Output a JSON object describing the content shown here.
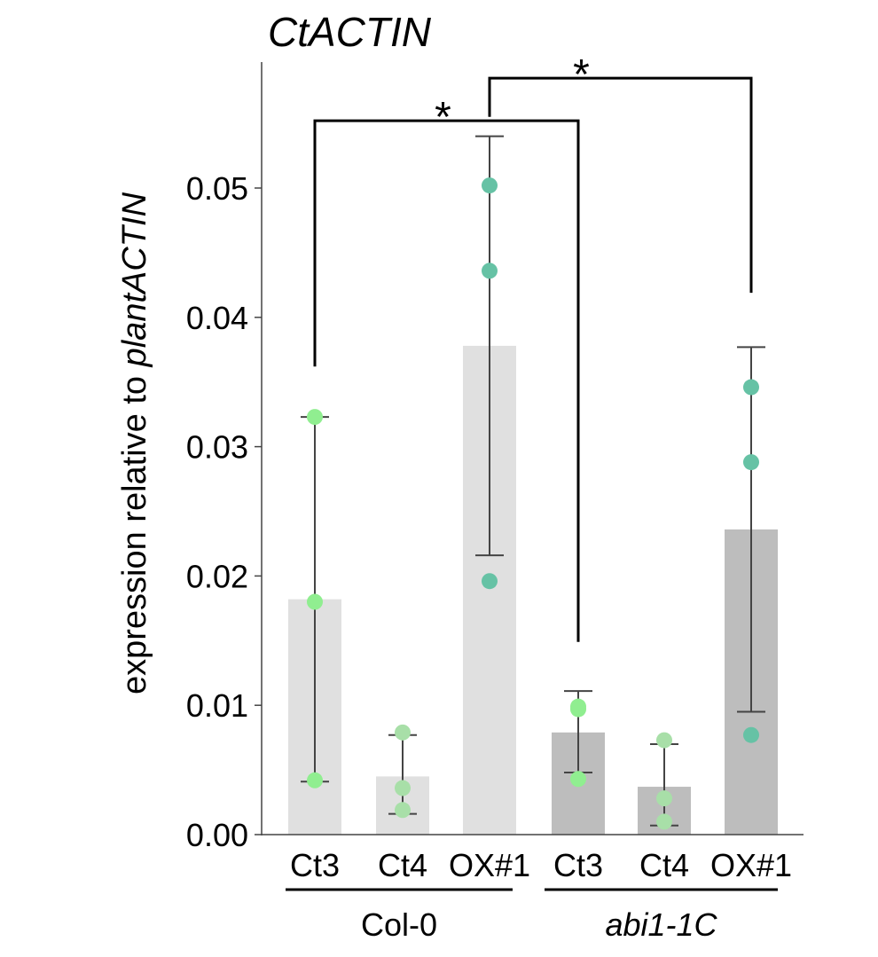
{
  "chart_data": {
    "type": "bar",
    "title": "CtACTIN",
    "ylabel_prefix": "expression relative to ",
    "ylabel_italic": "plantACTIN",
    "ylim": [
      0,
      0.059
    ],
    "yticks": [
      "0.00",
      "0.01",
      "0.02",
      "0.03",
      "0.04",
      "0.05"
    ],
    "ytick_values": [
      0,
      0.01,
      0.02,
      0.03,
      0.04,
      0.05
    ],
    "groups": [
      {
        "name": "Col-0",
        "italic": false,
        "bar_color": "#e0e0e0",
        "categories": [
          0,
          1,
          2
        ]
      },
      {
        "name": "abi1-1C",
        "italic": true,
        "bar_color": "#bdbdbd",
        "categories": [
          3,
          4,
          5
        ]
      }
    ],
    "categories": [
      "Ct3",
      "Ct4",
      "OX#1",
      "Ct3",
      "Ct4",
      "OX#1"
    ],
    "values": [
      0.0182,
      0.0045,
      0.0378,
      0.0079,
      0.0037,
      0.0236
    ],
    "error_low": [
      0.0041,
      0.0016,
      0.0216,
      0.0048,
      0.0007,
      0.0095
    ],
    "error_high": [
      0.0323,
      0.0077,
      0.054,
      0.0111,
      0.007,
      0.0377
    ],
    "points": [
      [
        0.0323,
        0.018,
        0.0042
      ],
      [
        0.0079,
        0.0036,
        0.0019
      ],
      [
        0.0502,
        0.0436,
        0.0196
      ],
      [
        0.0099,
        0.0097,
        0.0043
      ],
      [
        0.0073,
        0.0028,
        0.001
      ],
      [
        0.0346,
        0.0288,
        0.0077
      ]
    ],
    "point_colors": [
      "#90ee90",
      "#a8dfa8",
      "#66c2a5",
      "#90ee90",
      "#a8dfa8",
      "#66c2a5"
    ],
    "significance": [
      {
        "from": 0,
        "to": 3,
        "label": "*",
        "line_y": 0.0552,
        "from_y": 0.0362,
        "to_y": 0.0149
      },
      {
        "from": 2,
        "to": 5,
        "label": "*",
        "line_y": 0.0585,
        "from_y": 0.0555,
        "to_y": 0.0419
      }
    ],
    "grid": false,
    "legend": "none"
  }
}
